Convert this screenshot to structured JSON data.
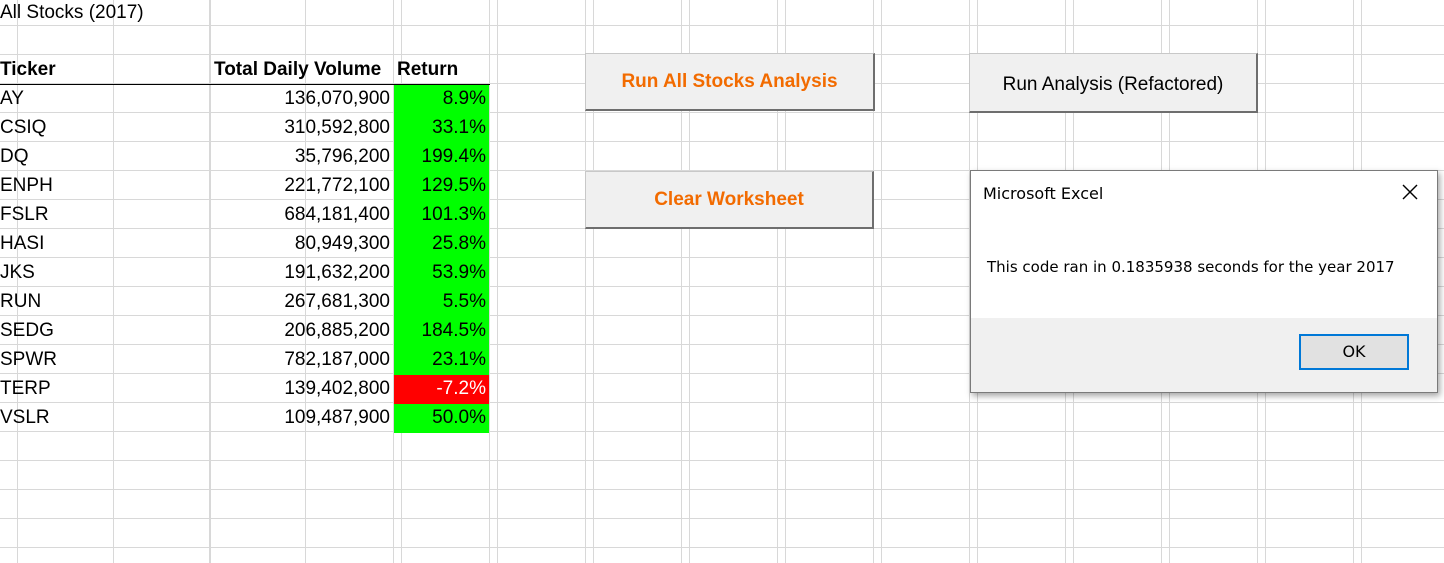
{
  "sheet": {
    "title": "All Stocks (2017)",
    "headers": {
      "ticker": "Ticker",
      "volume": "Total Daily Volume",
      "return": "Return"
    },
    "rows": [
      {
        "ticker": "AY",
        "volume": "136,070,900",
        "return": "8.9%",
        "status": "positive"
      },
      {
        "ticker": "CSIQ",
        "volume": "310,592,800",
        "return": "33.1%",
        "status": "positive"
      },
      {
        "ticker": "DQ",
        "volume": "35,796,200",
        "return": "199.4%",
        "status": "positive"
      },
      {
        "ticker": "ENPH",
        "volume": "221,772,100",
        "return": "129.5%",
        "status": "positive"
      },
      {
        "ticker": "FSLR",
        "volume": "684,181,400",
        "return": "101.3%",
        "status": "positive"
      },
      {
        "ticker": "HASI",
        "volume": "80,949,300",
        "return": "25.8%",
        "status": "positive"
      },
      {
        "ticker": "JKS",
        "volume": "191,632,200",
        "return": "53.9%",
        "status": "positive"
      },
      {
        "ticker": "RUN",
        "volume": "267,681,300",
        "return": "5.5%",
        "status": "positive"
      },
      {
        "ticker": "SEDG",
        "volume": "206,885,200",
        "return": "184.5%",
        "status": "positive"
      },
      {
        "ticker": "SPWR",
        "volume": "782,187,000",
        "return": "23.1%",
        "status": "positive"
      },
      {
        "ticker": "TERP",
        "volume": "139,402,800",
        "return": "-7.2%",
        "status": "negative"
      },
      {
        "ticker": "VSLR",
        "volume": "109,487,900",
        "return": "50.0%",
        "status": "positive"
      }
    ]
  },
  "buttons": {
    "run_all": "Run All Stocks Analysis",
    "clear": "Clear Worksheet",
    "run_refactored": "Run Analysis (Refactored)"
  },
  "dialog": {
    "title": "Microsoft Excel",
    "message": "This code ran in 0.1835938 seconds for the year 2017",
    "ok_label": "OK",
    "close_icon": "close-icon"
  },
  "colors": {
    "positive": "#00ff00",
    "negative": "#ff0000",
    "button_text_accent": "#f26b00",
    "ok_border": "#0078d7"
  }
}
